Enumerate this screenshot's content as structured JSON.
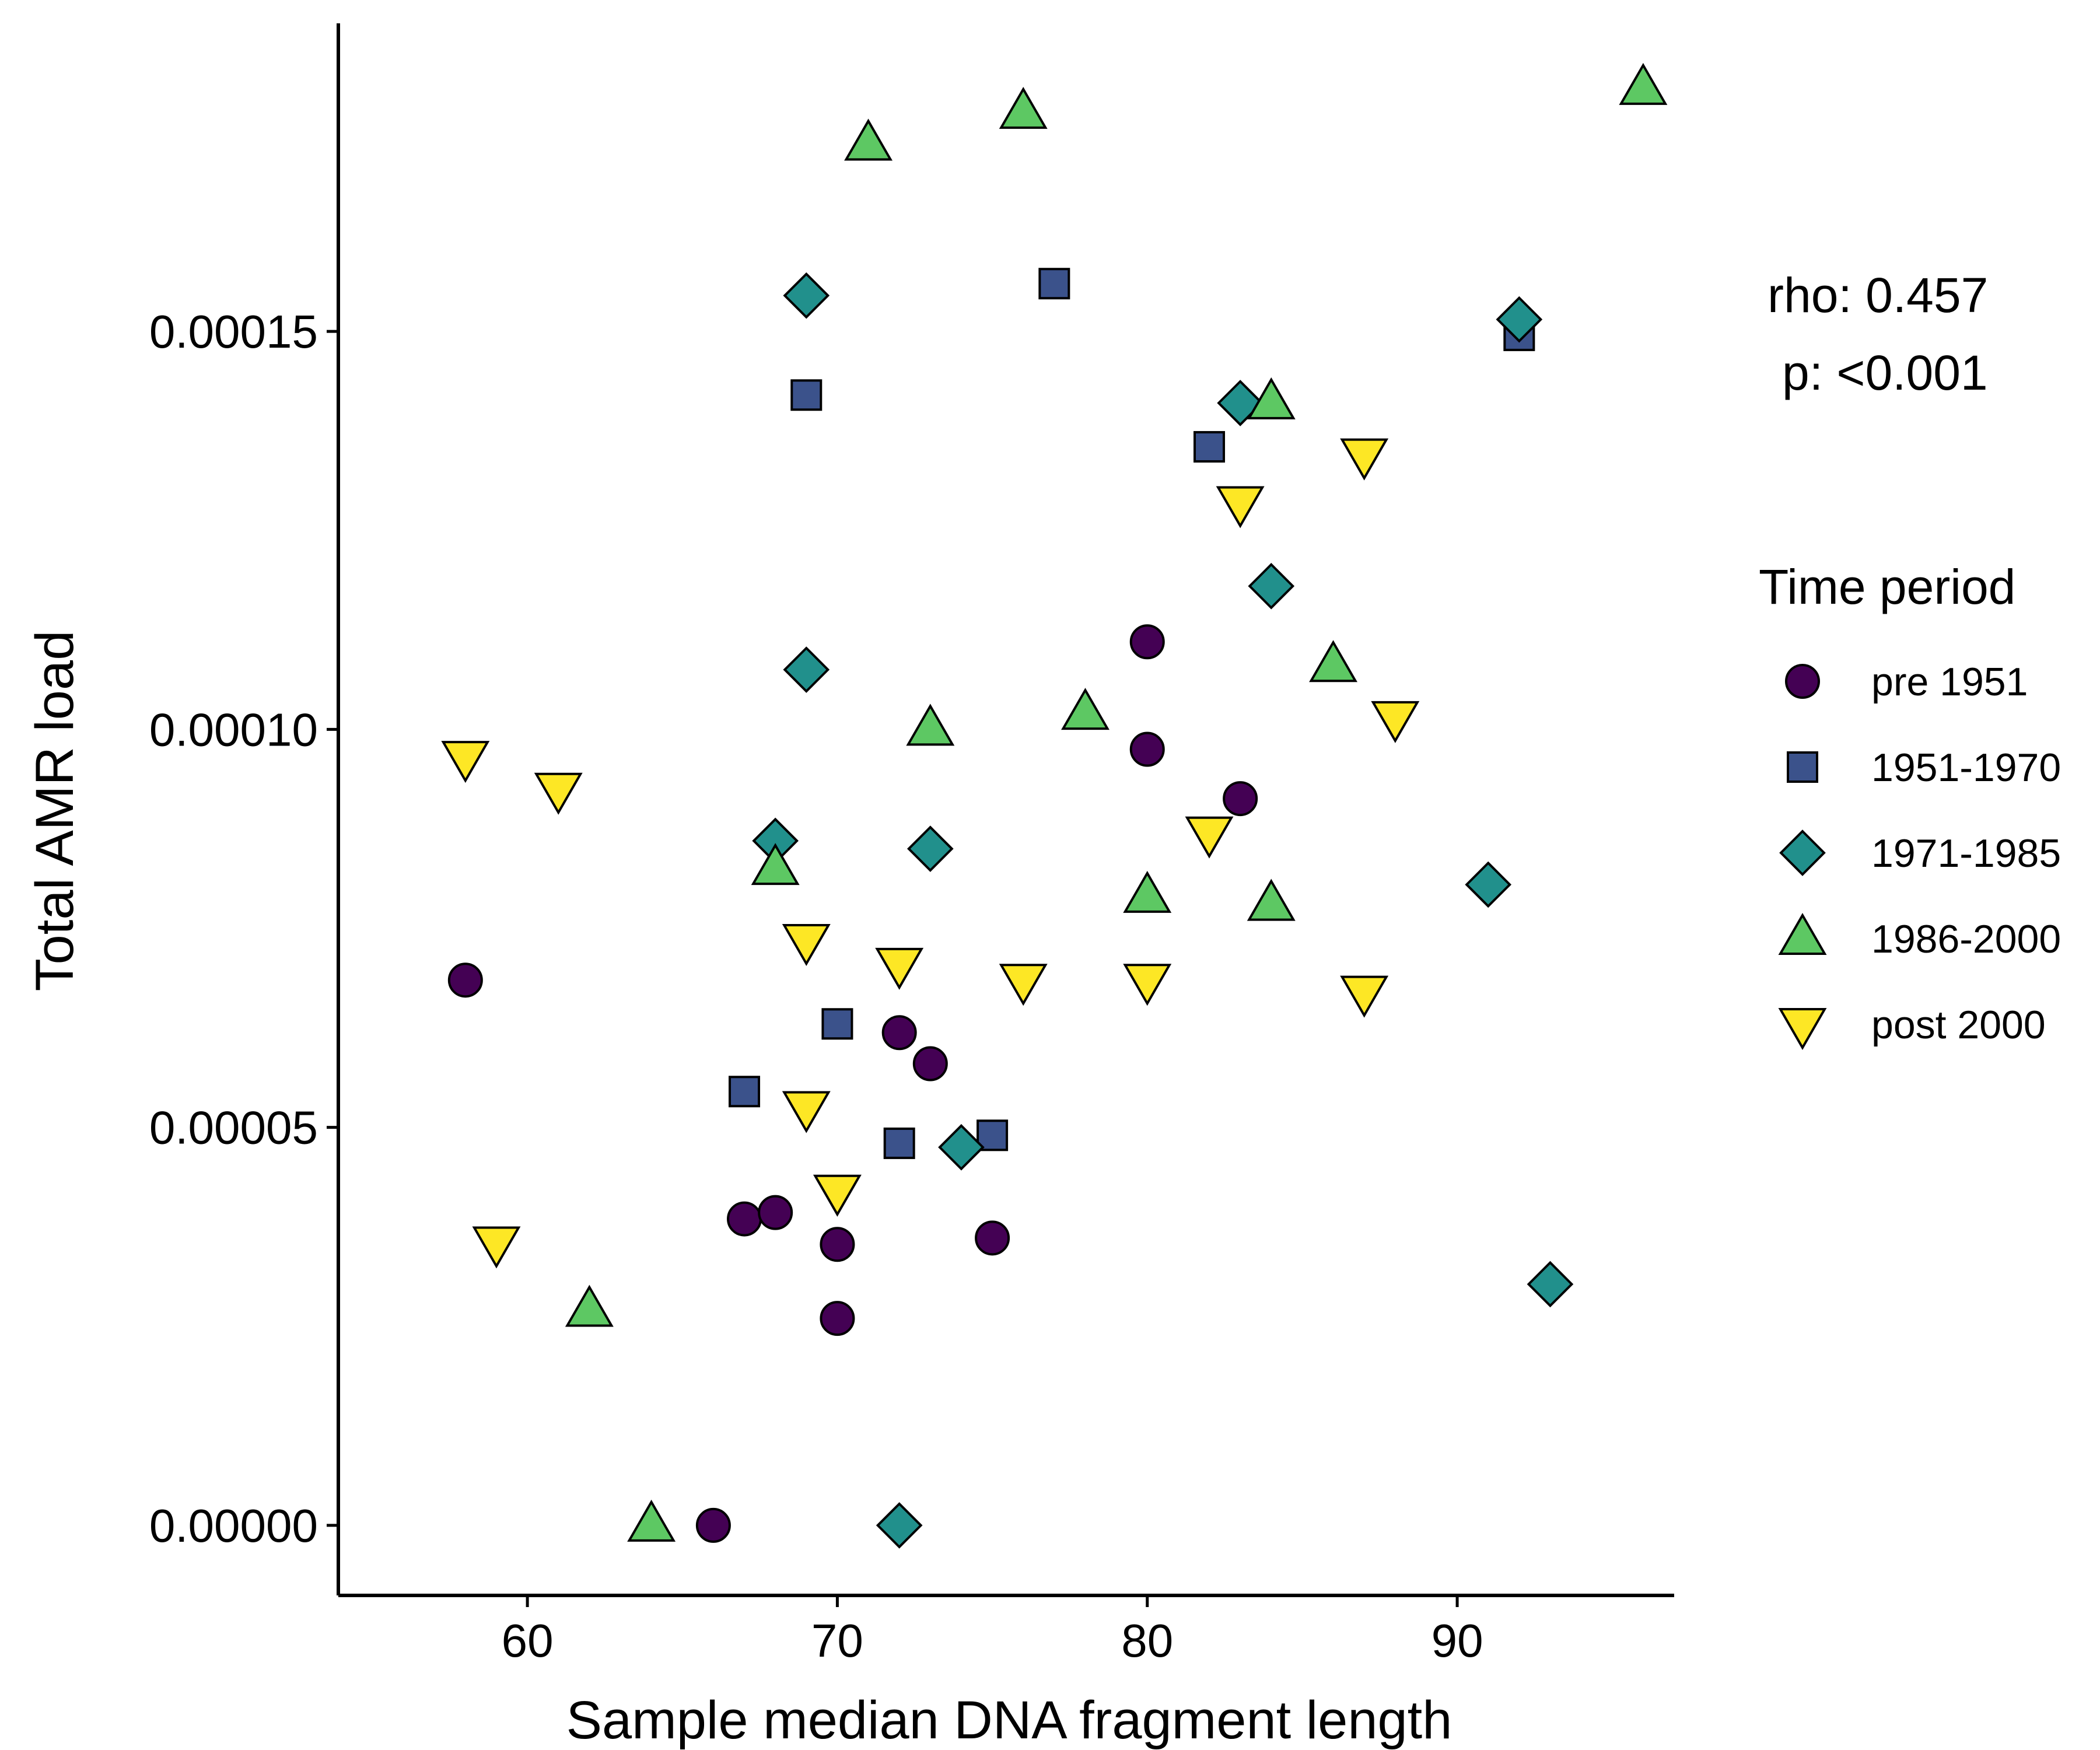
{
  "chart_data": {
    "type": "scatter",
    "xlabel": "Sample median DNA fragment length",
    "ylabel": "Total AMR load",
    "xlim": [
      53.9,
      97
    ],
    "ylim": [
      -8.8e-06,
      0.0001887
    ],
    "xticks": [
      60,
      70,
      80,
      90
    ],
    "xtick_labels": [
      "60",
      "70",
      "80",
      "90"
    ],
    "yticks": [
      0.0,
      5e-05,
      0.0001,
      0.00015
    ],
    "ytick_labels": [
      "0.00000",
      "0.00005",
      "0.00010",
      "0.00015"
    ],
    "grid": false,
    "legend": {
      "title": "Time period",
      "position": "right"
    },
    "annotation": {
      "rho": "rho: 0.457",
      "p": "p: <0.001"
    },
    "series": [
      {
        "name": "pre 1951",
        "shape": "circle",
        "color": "#440154",
        "points": [
          {
            "x": 58,
            "y": 6.85e-05
          },
          {
            "x": 66,
            "y": 0.0
          },
          {
            "x": 67,
            "y": 3.85e-05
          },
          {
            "x": 68,
            "y": 3.93e-05
          },
          {
            "x": 70,
            "y": 3.53e-05
          },
          {
            "x": 70,
            "y": 2.6e-05
          },
          {
            "x": 72,
            "y": 6.19e-05
          },
          {
            "x": 73,
            "y": 5.8e-05
          },
          {
            "x": 75,
            "y": 3.61e-05
          },
          {
            "x": 80,
            "y": 0.000111
          },
          {
            "x": 80,
            "y": 9.75e-05
          },
          {
            "x": 83,
            "y": 9.13e-05
          }
        ]
      },
      {
        "name": "1951-1970",
        "shape": "square",
        "color": "#3B528B",
        "points": [
          {
            "x": 67,
            "y": 5.45e-05
          },
          {
            "x": 69,
            "y": 0.000142
          },
          {
            "x": 70,
            "y": 6.3e-05
          },
          {
            "x": 72,
            "y": 4.8e-05
          },
          {
            "x": 75,
            "y": 4.9e-05
          },
          {
            "x": 77,
            "y": 0.000156
          },
          {
            "x": 82,
            "y": 0.0001355
          },
          {
            "x": 92,
            "y": 0.0001495
          }
        ]
      },
      {
        "name": "1971-1985",
        "shape": "diamond",
        "color": "#21908C",
        "points": [
          {
            "x": 68,
            "y": 8.6e-05
          },
          {
            "x": 69,
            "y": 0.0001545
          },
          {
            "x": 69,
            "y": 0.0001075
          },
          {
            "x": 72,
            "y": 0.0
          },
          {
            "x": 73,
            "y": 8.5e-05
          },
          {
            "x": 74,
            "y": 4.75e-05
          },
          {
            "x": 83,
            "y": 0.000141
          },
          {
            "x": 84,
            "y": 0.000118
          },
          {
            "x": 91,
            "y": 8.05e-05
          },
          {
            "x": 92,
            "y": 0.0001515
          },
          {
            "x": 93,
            "y": 3.03e-05
          }
        ]
      },
      {
        "name": "1986-2000",
        "shape": "triangle-up",
        "color": "#5DC863",
        "points": [
          {
            "x": 62,
            "y": 2.7e-05
          },
          {
            "x": 64,
            "y": 0.0
          },
          {
            "x": 68,
            "y": 8.25e-05
          },
          {
            "x": 71,
            "y": 0.0001735
          },
          {
            "x": 73,
            "y": 0.0001
          },
          {
            "x": 76,
            "y": 0.0001775
          },
          {
            "x": 78,
            "y": 0.000102
          },
          {
            "x": 80,
            "y": 7.9e-05
          },
          {
            "x": 84,
            "y": 0.000141
          },
          {
            "x": 84,
            "y": 7.8e-05
          },
          {
            "x": 86,
            "y": 0.000108
          },
          {
            "x": 96,
            "y": 0.0001805
          }
        ]
      },
      {
        "name": "post 2000",
        "shape": "triangle-down",
        "color": "#FDE725",
        "points": [
          {
            "x": 58,
            "y": 9.65e-05
          },
          {
            "x": 59,
            "y": 3.55e-05
          },
          {
            "x": 61,
            "y": 9.25e-05
          },
          {
            "x": 69,
            "y": 7.35e-05
          },
          {
            "x": 69,
            "y": 5.25e-05
          },
          {
            "x": 70,
            "y": 4.2e-05
          },
          {
            "x": 72,
            "y": 7.05e-05
          },
          {
            "x": 76,
            "y": 6.85e-05
          },
          {
            "x": 80,
            "y": 6.85e-05
          },
          {
            "x": 82,
            "y": 8.7e-05
          },
          {
            "x": 83,
            "y": 0.0001285
          },
          {
            "x": 87,
            "y": 0.0001345
          },
          {
            "x": 87,
            "y": 6.7e-05
          },
          {
            "x": 88,
            "y": 0.0001015
          }
        ]
      }
    ]
  }
}
